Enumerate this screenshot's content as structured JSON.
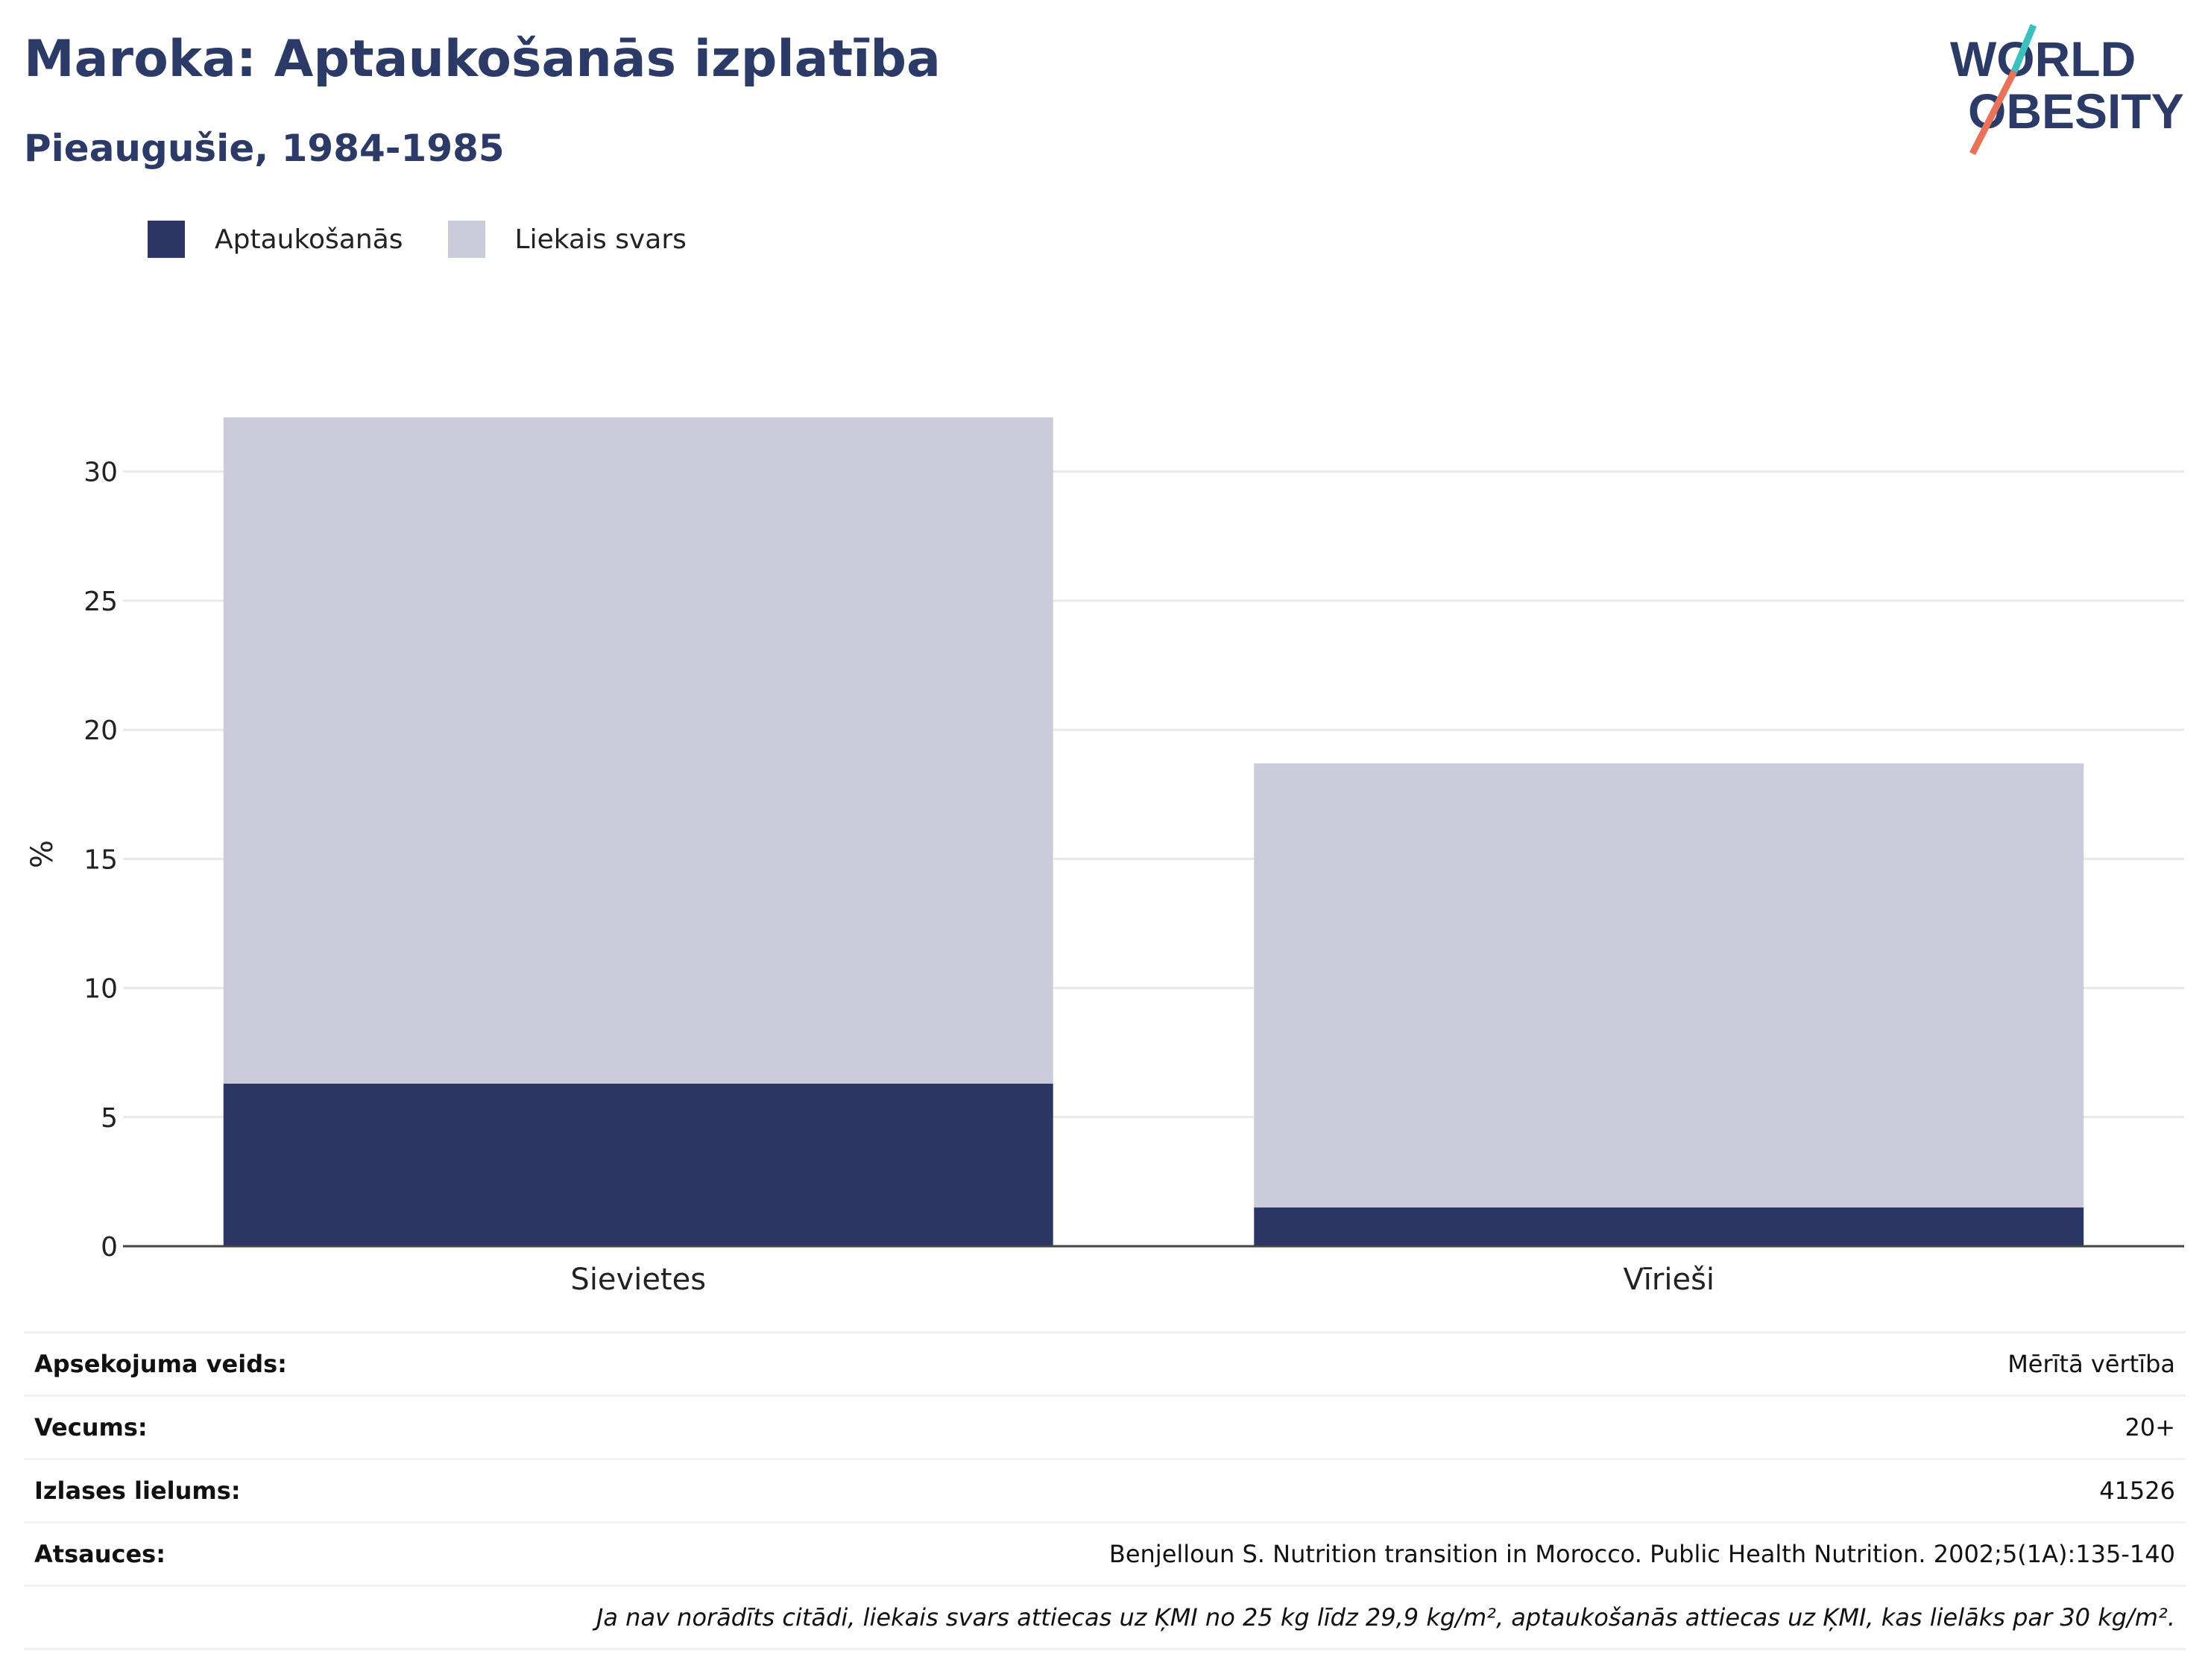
{
  "header": {
    "title": "Maroka: Aptaukošanās izplatība",
    "subtitle": "Pieaugušie, 1984-1985"
  },
  "logo": {
    "line1": "WORLD",
    "line2": "OBESITY",
    "icon": "world-obesity-logo"
  },
  "colors": {
    "obesity": "#2b3664",
    "overweight": "#cacdd9",
    "accent_teal": "#3bbfbf",
    "accent_coral": "#e8735a"
  },
  "legend": [
    {
      "label": "Aptaukošanās",
      "color": "#2b3664"
    },
    {
      "label": "Liekais svars",
      "color": "#cacdd9"
    }
  ],
  "chart_data": {
    "type": "bar",
    "stacked": true,
    "categories": [
      "Sievietes",
      "Vīrieši"
    ],
    "series": [
      {
        "name": "Aptaukošanās",
        "values": [
          6.3,
          1.5
        ]
      },
      {
        "name": "Liekais svars",
        "values": [
          25.8,
          17.2
        ]
      }
    ],
    "title": "Maroka: Aptaukošanās izplatība",
    "ylabel": "%",
    "ylim": [
      0,
      32.1
    ],
    "yticks": [
      0,
      5,
      10,
      15,
      20,
      25,
      30
    ],
    "grid": true,
    "legend_position": "top-left"
  },
  "info": {
    "rows": [
      {
        "label": "Apsekojuma veids:",
        "value": "Mērītā vērtība"
      },
      {
        "label": "Vecums:",
        "value": "20+"
      },
      {
        "label": "Izlases lielums:",
        "value": "41526"
      },
      {
        "label": "Atsauces:",
        "value": "Benjelloun S. Nutrition transition in Morocco. Public Health Nutrition. 2002;5(1A):135-140"
      }
    ],
    "note": "Ja nav norādīts citādi, liekais svars attiecas uz ĶMI no 25 kg līdz 29,9 kg/m², aptaukošanās attiecas uz ĶMI, kas lielāks par 30 kg/m²."
  }
}
